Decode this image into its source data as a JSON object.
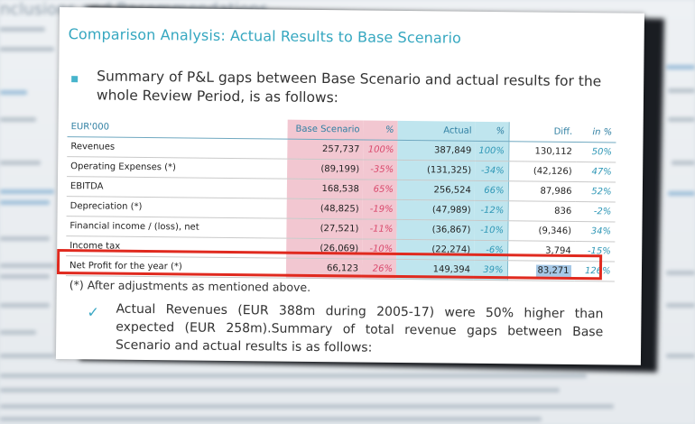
{
  "background": {
    "heading": "nclusions and Recommendations"
  },
  "slide": {
    "title": "Comparison Analysis: Actual Results to Base Scenario",
    "intro": "Summary of P&L gaps between Base Scenario and actual results for the whole Review Period, is as follows:",
    "table": {
      "headers": [
        "EUR'000",
        "Base Scenario",
        "%",
        "Actual",
        "%",
        "Diff.",
        "in %"
      ],
      "rows": [
        {
          "label": "Revenues",
          "base": "257,737",
          "base_pct": "100%",
          "actual": "387,849",
          "actual_pct": "100%",
          "diff": "130,112",
          "diff_pct": "50%"
        },
        {
          "label": "Operating Expenses (*)",
          "base": "(89,199)",
          "base_pct": "-35%",
          "actual": "(131,325)",
          "actual_pct": "-34%",
          "diff": "(42,126)",
          "diff_pct": "47%"
        },
        {
          "label": "EBITDA",
          "base": "168,538",
          "base_pct": "65%",
          "actual": "256,524",
          "actual_pct": "66%",
          "diff": "87,986",
          "diff_pct": "52%"
        },
        {
          "label": "Depreciation (*)",
          "base": "(48,825)",
          "base_pct": "-19%",
          "actual": "(47,989)",
          "actual_pct": "-12%",
          "diff": "836",
          "diff_pct": "-2%"
        },
        {
          "label": "Financial income / (loss), net",
          "base": "(27,521)",
          "base_pct": "-11%",
          "actual": "(36,867)",
          "actual_pct": "-10%",
          "diff": "(9,346)",
          "diff_pct": "34%"
        },
        {
          "label": "Income tax",
          "base": "(26,069)",
          "base_pct": "-10%",
          "actual": "(22,274)",
          "actual_pct": "-6%",
          "diff": "3,794",
          "diff_pct": "-15%"
        }
      ],
      "total": {
        "label": "Net Profit for the year (*)",
        "base": "66,123",
        "base_pct": "26%",
        "actual": "149,394",
        "actual_pct": "39%",
        "diff": "83,271",
        "diff_pct": "126%"
      }
    },
    "note": "(*) After adjustments as mentioned above.",
    "paragraph": "Actual Revenues (EUR 388m during 2005-17) were 50% higher than expected (EUR 258m).Summary of total revenue gaps between Base Scenario and actual results is as follows:"
  },
  "colors": {
    "title": "#35a7c0",
    "base_column": "#f2c7d1",
    "actual_column": "#bfe5ee",
    "highlight_box": "#e02a1f",
    "selection": "#a6c8e6"
  }
}
